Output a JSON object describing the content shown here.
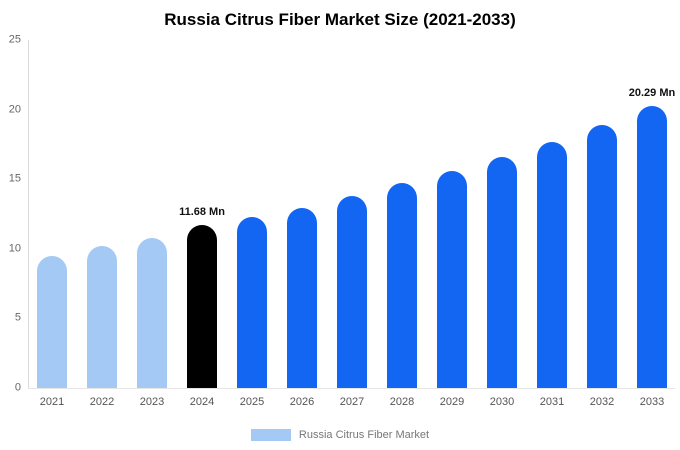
{
  "colors": {
    "light": "#A4C9F4",
    "primary": "#1266F1",
    "highlight": "#000000",
    "axis_line": "#d9d9d9"
  },
  "chart_data": {
    "type": "bar",
    "title": "Russia Citrus Fiber Market Size (2021-2033)",
    "categories": [
      "2021",
      "2022",
      "2023",
      "2024",
      "2025",
      "2026",
      "2027",
      "2028",
      "2029",
      "2030",
      "2031",
      "2032",
      "2033"
    ],
    "values": [
      9.5,
      10.2,
      10.75,
      11.68,
      12.3,
      12.95,
      13.8,
      14.7,
      15.6,
      16.6,
      17.7,
      18.9,
      20.29
    ],
    "bar_colors": [
      "light",
      "light",
      "light",
      "highlight",
      "primary",
      "primary",
      "primary",
      "primary",
      "primary",
      "primary",
      "primary",
      "primary",
      "primary"
    ],
    "annotations": [
      {
        "category": "2024",
        "text": "11.68 Mn"
      },
      {
        "category": "2033",
        "text": "20.29 Mn"
      }
    ],
    "xlabel": "",
    "ylabel": "",
    "ylim": [
      0,
      25
    ],
    "yticks": [
      0,
      5,
      10,
      15,
      20,
      25
    ],
    "grid": false,
    "legend": "Russia Citrus Fiber Market",
    "legend_position": "bottom"
  }
}
